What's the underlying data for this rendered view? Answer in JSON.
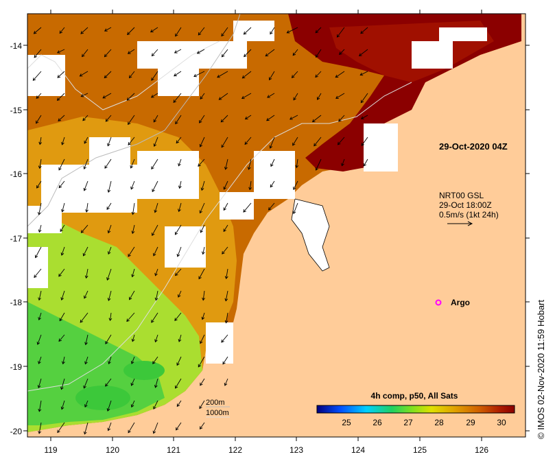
{
  "map": {
    "lon_ticks": [
      "119",
      "120",
      "121",
      "122",
      "123",
      "124",
      "125",
      "126"
    ],
    "lat_ticks": [
      "-14",
      "-15",
      "-16",
      "-17",
      "-18",
      "-19",
      "-20"
    ]
  },
  "annotations": {
    "timestamp": "29-Oct-2020 04Z",
    "current_source": "NRT00 GSL",
    "current_time": "29-Oct 18:00Z",
    "current_scale": "0.5m/s (1kt 24h)",
    "argo_label": "Argo"
  },
  "contours": {
    "label_200": "200m",
    "label_1000": "1000m"
  },
  "colorbar": {
    "title": "4h comp, p50, All Sats",
    "ticks": [
      "25",
      "26",
      "27",
      "28",
      "29",
      "30"
    ],
    "stops": [
      "#00007f",
      "#0050ff",
      "#00d0ff",
      "#20d060",
      "#7fe020",
      "#e0e000",
      "#e0a000",
      "#d06000",
      "#b02000",
      "#8b0000"
    ]
  },
  "credit": "© IMOS 02-Nov-2020 11:59 Hobart",
  "colors": {
    "land": "#ffcc99",
    "sea_hot": "#8b0000",
    "sea_warm": "#c86a00",
    "sea_mid": "#e09a10",
    "sea_cool": "#aade30",
    "sea_green": "#55d040",
    "cloud": "#ffffff",
    "argo": "#ff00ff"
  }
}
